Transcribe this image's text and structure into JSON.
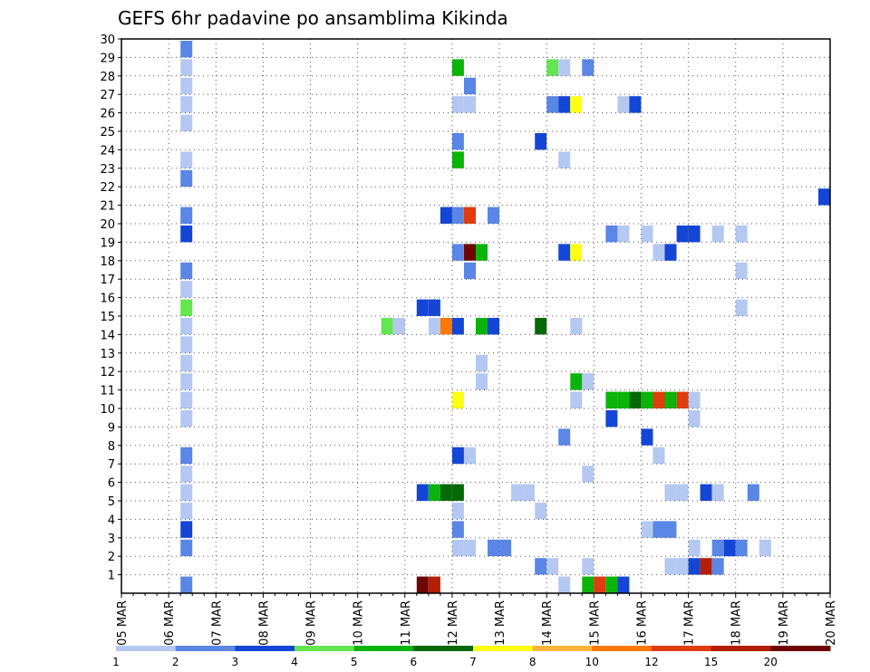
{
  "chart_data": {
    "type": "heatmap",
    "title": "GEFS 6hr padavine po ansamblima Kikinda",
    "xlabel": "",
    "ylabel": "",
    "x_ticks": [
      "05 MAR",
      "06 MAR",
      "07 MAR",
      "08 MAR",
      "09 MAR",
      "10 MAR",
      "11 MAR",
      "12 MAR",
      "13 MAR",
      "14 MAR",
      "15 MAR",
      "16 MAR",
      "17 MAR",
      "18 MAR",
      "19 MAR",
      "20 MAR"
    ],
    "x_range_days": [
      0,
      15
    ],
    "y_ticks": [
      1,
      2,
      3,
      4,
      5,
      6,
      7,
      8,
      9,
      10,
      11,
      12,
      13,
      14,
      15,
      16,
      17,
      18,
      19,
      20,
      21,
      22,
      23,
      24,
      25,
      26,
      27,
      28,
      29,
      30
    ],
    "ylim": [
      0,
      30
    ],
    "grid": "dotted",
    "colorbar": {
      "labels": [
        "1",
        "2",
        "3",
        "4",
        "5",
        "6",
        "7",
        "8",
        "10",
        "12",
        "15",
        "20"
      ],
      "colors": [
        "#b4c8f2",
        "#5a86e6",
        "#1446d6",
        "#64e650",
        "#0ab40a",
        "#056905",
        "#ffff14",
        "#ffb43c",
        "#ff7800",
        "#e13c0f",
        "#b41e05",
        "#6e0505"
      ]
    },
    "cells_note": "each cell: [member_row, time_step(6h steps since 05 MAR 00Z), color_index]",
    "cells": [
      [
        29,
        5,
        1
      ],
      [
        28,
        5,
        0
      ],
      [
        27,
        5,
        0
      ],
      [
        26,
        5,
        0
      ],
      [
        25,
        5,
        0
      ],
      [
        23,
        5,
        0
      ],
      [
        22,
        5,
        1
      ],
      [
        20,
        5,
        1
      ],
      [
        19,
        5,
        2
      ],
      [
        17,
        5,
        1
      ],
      [
        16,
        5,
        0
      ],
      [
        15,
        5,
        3
      ],
      [
        14,
        5,
        0
      ],
      [
        13,
        5,
        0
      ],
      [
        12,
        5,
        0
      ],
      [
        11,
        5,
        0
      ],
      [
        10,
        5,
        0
      ],
      [
        9,
        5,
        0
      ],
      [
        7,
        5,
        1
      ],
      [
        6,
        5,
        0
      ],
      [
        5,
        5,
        0
      ],
      [
        4,
        5,
        0
      ],
      [
        3,
        5,
        2
      ],
      [
        2,
        5,
        1
      ],
      [
        0,
        5,
        1
      ],
      [
        28,
        28,
        4
      ],
      [
        27,
        29,
        1
      ],
      [
        26,
        28,
        0
      ],
      [
        26,
        29,
        0
      ],
      [
        24,
        28,
        1
      ],
      [
        23,
        28,
        4
      ],
      [
        20,
        27,
        2
      ],
      [
        20,
        28,
        1
      ],
      [
        20,
        29,
        9
      ],
      [
        20,
        31,
        1
      ],
      [
        18,
        28,
        1
      ],
      [
        18,
        29,
        11
      ],
      [
        18,
        30,
        4
      ],
      [
        17,
        29,
        1
      ],
      [
        15,
        25,
        2
      ],
      [
        15,
        26,
        2
      ],
      [
        14,
        22,
        3
      ],
      [
        14,
        23,
        0
      ],
      [
        14,
        26,
        0
      ],
      [
        14,
        27,
        8
      ],
      [
        14,
        28,
        2
      ],
      [
        14,
        30,
        4
      ],
      [
        14,
        31,
        2
      ],
      [
        12,
        30,
        0
      ],
      [
        11,
        30,
        0
      ],
      [
        10,
        28,
        6
      ],
      [
        7,
        28,
        2
      ],
      [
        7,
        29,
        0
      ],
      [
        5,
        25,
        2
      ],
      [
        5,
        26,
        4
      ],
      [
        5,
        27,
        5
      ],
      [
        5,
        28,
        5
      ],
      [
        4,
        28,
        0
      ],
      [
        3,
        28,
        1
      ],
      [
        2,
        28,
        0
      ],
      [
        2,
        29,
        0
      ],
      [
        2,
        31,
        1
      ],
      [
        0,
        25,
        11
      ],
      [
        0,
        26,
        10
      ],
      [
        28,
        36,
        3
      ],
      [
        28,
        37,
        0
      ],
      [
        28,
        39,
        1
      ],
      [
        26,
        36,
        1
      ],
      [
        26,
        37,
        2
      ],
      [
        26,
        38,
        6
      ],
      [
        26,
        42,
        0
      ],
      [
        26,
        43,
        2
      ],
      [
        24,
        35,
        2
      ],
      [
        23,
        37,
        0
      ],
      [
        19,
        41,
        1
      ],
      [
        19,
        42,
        0
      ],
      [
        19,
        44,
        0
      ],
      [
        19,
        47,
        2
      ],
      [
        19,
        48,
        2
      ],
      [
        19,
        50,
        0
      ],
      [
        19,
        52,
        0
      ],
      [
        18,
        37,
        2
      ],
      [
        18,
        38,
        6
      ],
      [
        18,
        45,
        0
      ],
      [
        18,
        46,
        2
      ],
      [
        17,
        52,
        0
      ],
      [
        15,
        52,
        0
      ],
      [
        14,
        35,
        5
      ],
      [
        14,
        38,
        0
      ],
      [
        11,
        38,
        4
      ],
      [
        11,
        39,
        0
      ],
      [
        10,
        38,
        0
      ],
      [
        10,
        41,
        4
      ],
      [
        10,
        42,
        4
      ],
      [
        10,
        43,
        5
      ],
      [
        10,
        44,
        4
      ],
      [
        10,
        45,
        9
      ],
      [
        10,
        46,
        4
      ],
      [
        10,
        47,
        9
      ],
      [
        10,
        48,
        0
      ],
      [
        9,
        41,
        2
      ],
      [
        9,
        48,
        0
      ],
      [
        8,
        37,
        1
      ],
      [
        8,
        44,
        2
      ],
      [
        7,
        45,
        0
      ],
      [
        6,
        39,
        0
      ],
      [
        5,
        33,
        0
      ],
      [
        5,
        34,
        0
      ],
      [
        5,
        46,
        0
      ],
      [
        5,
        47,
        0
      ],
      [
        5,
        49,
        2
      ],
      [
        5,
        50,
        0
      ],
      [
        5,
        53,
        1
      ],
      [
        4,
        35,
        0
      ],
      [
        3,
        44,
        0
      ],
      [
        3,
        45,
        1
      ],
      [
        3,
        46,
        1
      ],
      [
        2,
        32,
        1
      ],
      [
        2,
        48,
        0
      ],
      [
        2,
        50,
        1
      ],
      [
        2,
        51,
        2
      ],
      [
        2,
        52,
        1
      ],
      [
        2,
        54,
        0
      ],
      [
        1,
        35,
        1
      ],
      [
        1,
        36,
        0
      ],
      [
        1,
        39,
        0
      ],
      [
        1,
        46,
        0
      ],
      [
        1,
        47,
        0
      ],
      [
        1,
        48,
        2
      ],
      [
        1,
        49,
        10
      ],
      [
        1,
        50,
        1
      ],
      [
        0,
        37,
        0
      ],
      [
        0,
        39,
        4
      ],
      [
        0,
        40,
        9
      ],
      [
        0,
        41,
        4
      ],
      [
        0,
        42,
        2
      ],
      [
        21,
        59,
        2
      ]
    ]
  }
}
